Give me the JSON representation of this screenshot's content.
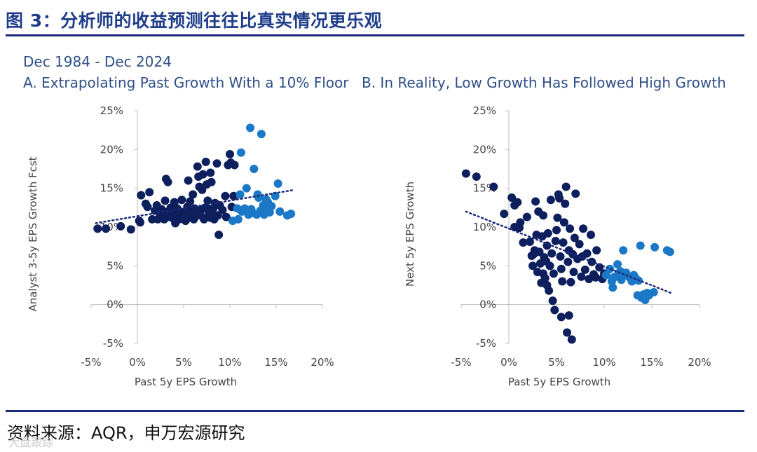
{
  "header": {
    "title": "图 3：分析师的收益预测往往比真实情况更乐观"
  },
  "subtitle": {
    "date_range": "Dec 1984 - Dec 2024"
  },
  "footer": {
    "source": "资料来源：AQR，申万宏源研究",
    "watermark": "大盘跟踪"
  },
  "colors": {
    "dark": "#0d1f5c",
    "light": "#1a78c6",
    "trend": "#1a2a7c",
    "text": "#2f4f87"
  },
  "chart_data": [
    {
      "type": "scatter",
      "title": "A. Extrapolating Past Growth With a 10% Floor",
      "xlabel": "Past 5y EPS Growth",
      "ylabel": "Analyst 3-5y EPS Growth Fcst",
      "xlim": [
        -5,
        20
      ],
      "ylim": [
        -5,
        25
      ],
      "xticks": [
        -5,
        0,
        5,
        10,
        15,
        20
      ],
      "yticks": [
        -5,
        0,
        5,
        10,
        15,
        20,
        25
      ],
      "xtick_labels": [
        "-5%",
        "0%",
        "5%",
        "10%",
        "15%",
        "20%"
      ],
      "ytick_labels": [
        "-5%",
        "0%",
        "5%",
        "10%",
        "15%",
        "20%",
        "25%"
      ],
      "trendline": {
        "from": [
          -4.5,
          10.5
        ],
        "to": [
          17,
          14.8
        ]
      },
      "series": [
        {
          "name": "dark",
          "points": [
            [
              -4.3,
              9.8
            ],
            [
              -3.4,
              9.8
            ],
            [
              -1.8,
              10.1
            ],
            [
              -0.7,
              9.7
            ],
            [
              0.2,
              10.8
            ],
            [
              0.3,
              10.6
            ],
            [
              0.4,
              14.1
            ],
            [
              0.9,
              13.0
            ],
            [
              1.3,
              14.5
            ],
            [
              1.1,
              12.6
            ],
            [
              1.6,
              11.0
            ],
            [
              1.9,
              12.1
            ],
            [
              2.1,
              12.8
            ],
            [
              2.2,
              11.0
            ],
            [
              2.5,
              11.6
            ],
            [
              2.6,
              12.3
            ],
            [
              2.9,
              11.0
            ],
            [
              3.0,
              13.4
            ],
            [
              3.1,
              16.2
            ],
            [
              3.3,
              15.8
            ],
            [
              3.3,
              12.0
            ],
            [
              3.5,
              11.3
            ],
            [
              3.6,
              12.5
            ],
            [
              3.7,
              11.9
            ],
            [
              3.9,
              11.1
            ],
            [
              4.0,
              13.2
            ],
            [
              4.1,
              10.5
            ],
            [
              4.2,
              11.8
            ],
            [
              4.3,
              12.4
            ],
            [
              4.5,
              11.0
            ],
            [
              4.6,
              12.0
            ],
            [
              4.8,
              13.5
            ],
            [
              5.0,
              11.5
            ],
            [
              5.1,
              11.9
            ],
            [
              5.2,
              10.8
            ],
            [
              5.4,
              12.6
            ],
            [
              5.5,
              16.0
            ],
            [
              5.6,
              11.2
            ],
            [
              5.7,
              13.3
            ],
            [
              5.9,
              11.8
            ],
            [
              6.0,
              14.2
            ],
            [
              6.1,
              11.0
            ],
            [
              6.2,
              12.4
            ],
            [
              6.3,
              12.0
            ],
            [
              6.5,
              17.8
            ],
            [
              6.6,
              16.5
            ],
            [
              6.7,
              15.2
            ],
            [
              6.8,
              11.5
            ],
            [
              6.9,
              12.2
            ],
            [
              7.0,
              14.8
            ],
            [
              7.1,
              16.8
            ],
            [
              7.2,
              11.0
            ],
            [
              7.3,
              12.5
            ],
            [
              7.4,
              18.4
            ],
            [
              7.5,
              15.5
            ],
            [
              7.6,
              13.4
            ],
            [
              7.7,
              11.6
            ],
            [
              7.8,
              12.3
            ],
            [
              7.9,
              17.0
            ],
            [
              8.0,
              15.8
            ],
            [
              8.1,
              11.8
            ],
            [
              8.2,
              12.4
            ],
            [
              8.3,
              11.0
            ],
            [
              8.4,
              13.1
            ],
            [
              8.6,
              18.2
            ],
            [
              8.7,
              11.5
            ],
            [
              8.8,
              9.0
            ],
            [
              8.9,
              12.8
            ],
            [
              9.2,
              12.2
            ],
            [
              9.5,
              14.0
            ],
            [
              9.6,
              11.3
            ],
            [
              9.8,
              18.0
            ],
            [
              10.0,
              19.4
            ],
            [
              10.1,
              18.3
            ],
            [
              10.2,
              12.6
            ],
            [
              10.4,
              14.0
            ],
            [
              10.5,
              18.0
            ],
            [
              7.9,
              11.2
            ],
            [
              6.4,
              11.5
            ],
            [
              2.7,
              11.8
            ]
          ]
        },
        {
          "name": "light",
          "points": [
            [
              10.3,
              10.8
            ],
            [
              10.8,
              12.4
            ],
            [
              10.9,
              11.0
            ],
            [
              11.1,
              14.2
            ],
            [
              11.2,
              19.6
            ],
            [
              11.3,
              12.0
            ],
            [
              11.6,
              12.4
            ],
            [
              11.8,
              15.0
            ],
            [
              12.0,
              11.6
            ],
            [
              12.2,
              22.8
            ],
            [
              12.3,
              12.3
            ],
            [
              12.5,
              11.8
            ],
            [
              12.6,
              17.5
            ],
            [
              12.9,
              11.6
            ],
            [
              13.1,
              13.8
            ],
            [
              13.3,
              12.1
            ],
            [
              13.4,
              22.0
            ],
            [
              13.6,
              12.8
            ],
            [
              13.7,
              11.6
            ],
            [
              13.9,
              13.6
            ],
            [
              14.0,
              12.4
            ],
            [
              14.1,
              13.2
            ],
            [
              14.3,
              11.9
            ],
            [
              14.5,
              12.7
            ],
            [
              14.9,
              14.0
            ],
            [
              15.2,
              15.6
            ],
            [
              15.4,
              12.0
            ],
            [
              16.2,
              11.5
            ],
            [
              16.6,
              11.7
            ],
            [
              13.0,
              14.2
            ]
          ]
        }
      ]
    },
    {
      "type": "scatter",
      "title": "B. In Reality, Low Growth Has Followed High Growth",
      "xlabel": "Past 5y EPS Growth",
      "ylabel": "Next 5y EPS Growth",
      "xlim": [
        -5,
        20
      ],
      "ylim": [
        -5,
        25
      ],
      "xticks": [
        -5,
        0,
        5,
        10,
        15,
        20
      ],
      "yticks": [
        -5,
        0,
        5,
        10,
        15,
        20,
        25
      ],
      "xtick_labels": [
        "-5%",
        "0%",
        "5%",
        "10%",
        "15%",
        "20%"
      ],
      "ytick_labels": [
        "-5%",
        "0%",
        "5%",
        "10%",
        "15%",
        "20%",
        "25%"
      ],
      "trendline": {
        "from": [
          -4.5,
          12.0
        ],
        "to": [
          17,
          1.5
        ]
      },
      "series": [
        {
          "name": "dark",
          "points": [
            [
              -4.5,
              16.9
            ],
            [
              -3.4,
              16.5
            ],
            [
              -1.6,
              15.2
            ],
            [
              -0.5,
              11.7
            ],
            [
              0.3,
              13.8
            ],
            [
              0.6,
              12.8
            ],
            [
              0.6,
              10.0
            ],
            [
              0.9,
              13.2
            ],
            [
              1.1,
              9.9
            ],
            [
              1.2,
              10.6
            ],
            [
              1.5,
              8.0
            ],
            [
              1.9,
              11.3
            ],
            [
              2.2,
              8.1
            ],
            [
              2.4,
              6.3
            ],
            [
              2.5,
              5.0
            ],
            [
              2.7,
              7.0
            ],
            [
              2.8,
              13.3
            ],
            [
              2.9,
              9.0
            ],
            [
              3.0,
              4.2
            ],
            [
              3.1,
              12.0
            ],
            [
              3.2,
              6.8
            ],
            [
              3.3,
              5.3
            ],
            [
              3.4,
              2.8
            ],
            [
              3.5,
              8.8
            ],
            [
              3.6,
              4.0
            ],
            [
              3.7,
              6.1
            ],
            [
              3.8,
              3.4
            ],
            [
              3.9,
              5.6
            ],
            [
              4.0,
              7.6
            ],
            [
              4.1,
              9.2
            ],
            [
              4.2,
              1.8
            ],
            [
              4.3,
              5.0
            ],
            [
              4.4,
              13.5
            ],
            [
              4.5,
              6.6
            ],
            [
              4.6,
              0.5
            ],
            [
              4.7,
              4.0
            ],
            [
              4.8,
              -0.7
            ],
            [
              4.9,
              8.2
            ],
            [
              5.0,
              9.6
            ],
            [
              5.1,
              11.2
            ],
            [
              5.2,
              14.2
            ],
            [
              5.3,
              13.7
            ],
            [
              5.4,
              6.2
            ],
            [
              5.5,
              4.6
            ],
            [
              5.6,
              3.0
            ],
            [
              5.7,
              8.0
            ],
            [
              5.8,
              10.6
            ],
            [
              5.9,
              13.0
            ],
            [
              6.0,
              15.2
            ],
            [
              6.1,
              -3.6
            ],
            [
              6.2,
              5.5
            ],
            [
              6.3,
              7.0
            ],
            [
              6.4,
              9.8
            ],
            [
              6.5,
              2.9
            ],
            [
              6.6,
              -4.5
            ],
            [
              6.7,
              6.5
            ],
            [
              6.8,
              4.2
            ],
            [
              6.9,
              8.6
            ],
            [
              7.0,
              14.3
            ],
            [
              7.2,
              5.9
            ],
            [
              7.4,
              7.8
            ],
            [
              7.6,
              3.6
            ],
            [
              7.8,
              9.8
            ],
            [
              8.0,
              4.5
            ],
            [
              8.2,
              6.6
            ],
            [
              8.4,
              3.3
            ],
            [
              8.6,
              9.0
            ],
            [
              8.9,
              3.9
            ],
            [
              9.2,
              7.0
            ],
            [
              9.5,
              4.8
            ],
            [
              9.8,
              3.3
            ],
            [
              10.0,
              4.0
            ],
            [
              5.5,
              -1.6
            ],
            [
              6.3,
              -1.4
            ],
            [
              4.0,
              2.5
            ],
            [
              3.6,
              11.5
            ],
            [
              2.6,
              6.5
            ],
            [
              7.7,
              6.2
            ],
            [
              8.7,
              5.5
            ],
            [
              9.1,
              3.5
            ]
          ]
        },
        {
          "name": "light",
          "points": [
            [
              10.2,
              3.8
            ],
            [
              10.6,
              4.6
            ],
            [
              10.9,
              2.2
            ],
            [
              11.0,
              3.5
            ],
            [
              11.4,
              5.2
            ],
            [
              11.5,
              4.0
            ],
            [
              11.8,
              3.2
            ],
            [
              12.0,
              7.0
            ],
            [
              12.3,
              4.1
            ],
            [
              12.6,
              3.6
            ],
            [
              12.9,
              3.0
            ],
            [
              13.1,
              3.8
            ],
            [
              13.3,
              3.4
            ],
            [
              13.5,
              1.2
            ],
            [
              13.8,
              7.6
            ],
            [
              13.9,
              0.9
            ],
            [
              14.1,
              1.3
            ],
            [
              14.3,
              0.6
            ],
            [
              14.5,
              1.5
            ],
            [
              15.2,
              1.6
            ],
            [
              15.3,
              7.4
            ],
            [
              16.6,
              7.0
            ],
            [
              16.9,
              6.8
            ],
            [
              12.8,
              3.3
            ],
            [
              11.7,
              4.3
            ],
            [
              10.8,
              3.0
            ],
            [
              14.7,
              1.2
            ],
            [
              13.6,
              3.1
            ],
            [
              12.2,
              3.9
            ],
            [
              11.2,
              3.6
            ]
          ]
        }
      ]
    }
  ]
}
